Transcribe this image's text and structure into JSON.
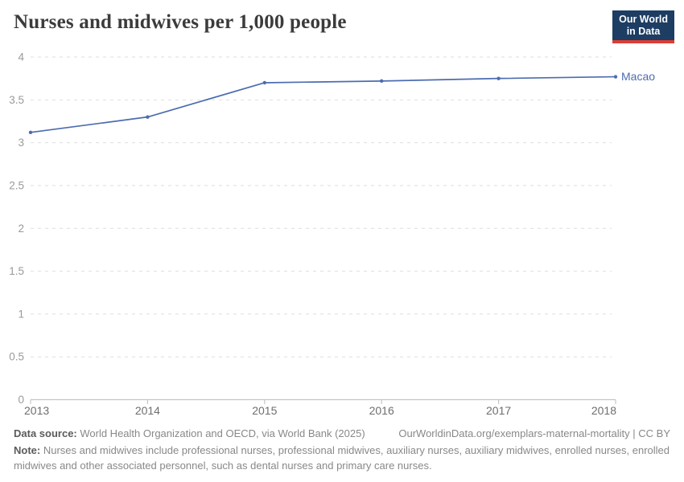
{
  "header": {
    "title": "Nurses and midwives per 1,000 people",
    "logo": {
      "line1": "Our World",
      "line2": "in Data",
      "bg_color": "#1d3d63",
      "accent_color": "#dc3e36"
    }
  },
  "chart_data": {
    "type": "line",
    "title": "Nurses and midwives per 1,000 people",
    "x": [
      2013,
      2014,
      2015,
      2016,
      2017,
      2018
    ],
    "series": [
      {
        "name": "Macao",
        "color": "#4c6cb0",
        "values": [
          3.12,
          3.3,
          3.7,
          3.72,
          3.75,
          3.77
        ]
      }
    ],
    "xlabel": "",
    "ylabel": "",
    "ylim": [
      0,
      4
    ],
    "yticks": [
      0,
      0.5,
      1,
      1.5,
      2,
      2.5,
      3,
      3.5,
      4
    ],
    "ytick_labels": [
      "0",
      "0.5",
      "1",
      "1.5",
      "2",
      "2.5",
      "3",
      "3.5",
      "4"
    ],
    "xtick_labels": [
      "2013",
      "2014",
      "2015",
      "2016",
      "2017",
      "2018"
    ],
    "grid": "horizontal-dashed",
    "legend": "end-of-line-label",
    "colors": {
      "grid": "#dedede",
      "axis": "#c6c6c6",
      "ytick_text": "#9a9a9a",
      "xtick_text": "#6e6e6e"
    }
  },
  "footer": {
    "datasource_label": "Data source:",
    "datasource_text": " World Health Organization and OECD, via World Bank (2025)",
    "url_text": "OurWorldinData.org/exemplars-maternal-mortality | CC BY",
    "note_label": "Note:",
    "note_text": " Nurses and midwives include professional nurses, professional midwives, auxiliary nurses, auxiliary midwives, enrolled nurses, enrolled midwives and other associated personnel, such as dental nurses and primary care nurses."
  }
}
